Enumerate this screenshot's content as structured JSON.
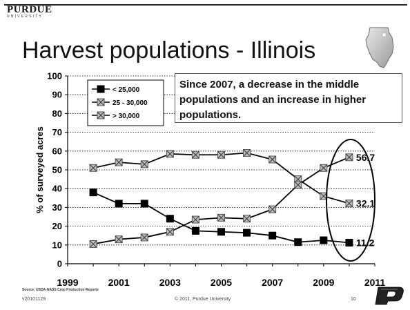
{
  "logo": {
    "word": "PURDUE",
    "sub": "UNIVERSITY"
  },
  "title": "Harvest populations - Illinois",
  "annotation": "Since 2007, a decrease in the middle populations and an increase in higher populations.",
  "source": "Source: USDA-NASS Crop Production Reports",
  "footer": {
    "left": "v20101129",
    "center": "© 2011, Purdue University",
    "page": "10"
  },
  "icons": {
    "state": "illinois-map-icon",
    "brand": "purdue-p-icon"
  },
  "colors": {
    "line": "#000000",
    "marker_fill": "#bbbbbb",
    "square": "#000000"
  },
  "chart_data": {
    "type": "line",
    "ylabel": "% of surveyed acres",
    "xlabel": "",
    "xlim": [
      1999,
      2011
    ],
    "ylim": [
      0,
      100
    ],
    "x_ticks": [
      "1999",
      "2001",
      "2003",
      "2005",
      "2007",
      "2009",
      "2011"
    ],
    "y_ticks": [
      "0",
      "10",
      "20",
      "30",
      "40",
      "50",
      "60",
      "70",
      "80",
      "90",
      "100"
    ],
    "grid": "horizontal dotted",
    "legend_position": "top-left",
    "x": [
      2000,
      2001,
      2002,
      2003,
      2004,
      2005,
      2006,
      2007,
      2008,
      2009,
      2010
    ],
    "series": [
      {
        "name": "< 25,000",
        "marker": "square",
        "values": [
          38,
          32,
          32,
          24,
          17.5,
          17,
          16.5,
          15,
          11.5,
          12.5,
          11.2
        ]
      },
      {
        "name": "25 - 30,000",
        "marker": "x-square",
        "values": [
          51,
          54,
          53,
          58.5,
          58,
          58,
          59,
          55.5,
          45,
          36,
          32.1
        ]
      },
      {
        "name": "> 30,000",
        "marker": "x-square",
        "values": [
          10.5,
          13,
          14,
          17,
          23.5,
          24.5,
          24,
          29,
          42,
          51,
          56.7
        ]
      }
    ],
    "end_labels": [
      "11.2",
      "32.1",
      "56.7"
    ]
  }
}
